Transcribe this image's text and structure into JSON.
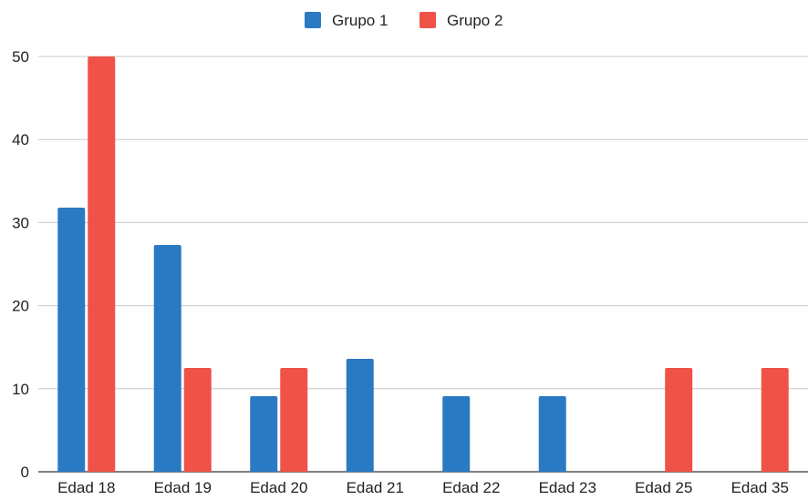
{
  "chart_data": {
    "type": "bar",
    "categories": [
      "Edad 18",
      "Edad 19",
      "Edad 20",
      "Edad 21",
      "Edad 22",
      "Edad 23",
      "Edad 25",
      "Edad 35"
    ],
    "series": [
      {
        "name": "Grupo 1",
        "color": "#2a7ac3",
        "values": [
          31.8,
          27.3,
          9.1,
          13.6,
          9.1,
          9.1,
          0,
          0
        ]
      },
      {
        "name": "Grupo 2",
        "color": "#f05248",
        "values": [
          50,
          12.5,
          12.5,
          0,
          0,
          0,
          12.5,
          12.5
        ]
      }
    ],
    "ylim": [
      0,
      50
    ],
    "yticks": [
      0,
      10,
      20,
      30,
      40,
      50
    ],
    "grid": true,
    "legend": "top-center",
    "title": "",
    "xlabel": "",
    "ylabel": ""
  }
}
